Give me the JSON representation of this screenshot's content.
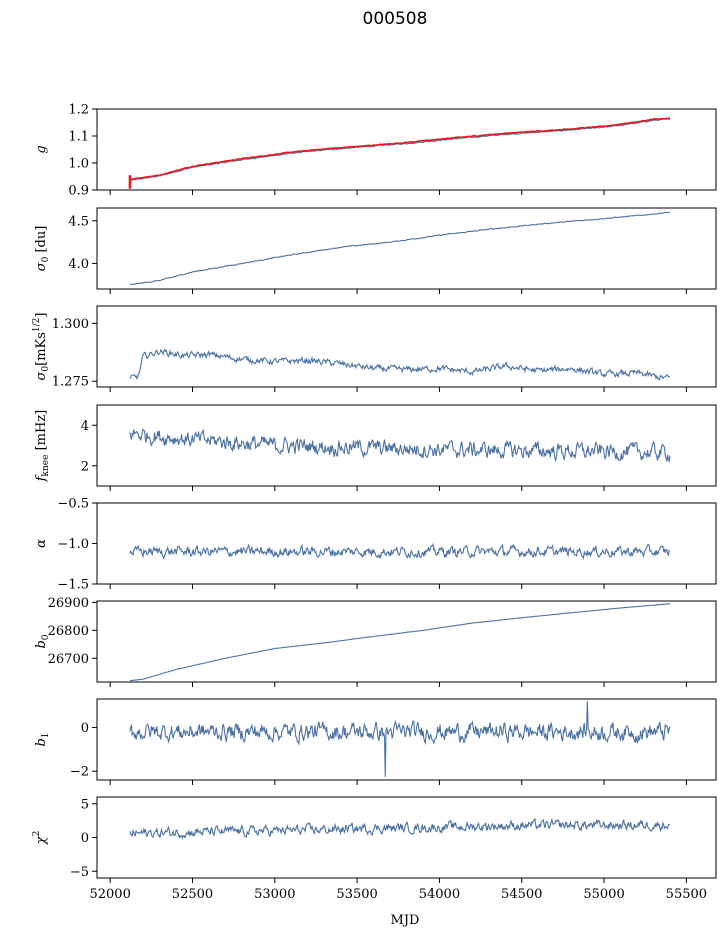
{
  "figure_title": "000508",
  "xlabel": "MJD",
  "colors": {
    "series": "#4c72a4",
    "fit": "#e41a1c",
    "axis": "#000000"
  },
  "chart_data": [
    {
      "id": "g",
      "type": "line",
      "ylabel": "g",
      "ylabel_svg": "<tspan font-style='italic'>g</tspan>",
      "ylim": [
        0.9,
        1.2
      ],
      "yticks": [
        0.9,
        1.0,
        1.1,
        1.2
      ],
      "ytick_labels": [
        "0.9",
        "1.0",
        "1.1",
        "1.2"
      ],
      "series": [
        {
          "name": "g",
          "color": "#4c72a4",
          "x": [
            52120,
            52300,
            52500,
            52800,
            53100,
            53300,
            53500,
            53800,
            54100,
            54400,
            54700,
            55000,
            55200,
            55300,
            55400
          ],
          "y": [
            0.935,
            0.952,
            0.984,
            1.012,
            1.036,
            1.048,
            1.058,
            1.072,
            1.09,
            1.106,
            1.118,
            1.132,
            1.148,
            1.158,
            1.162
          ],
          "noise": 0.002
        },
        {
          "name": "fit",
          "color": "#e41a1c",
          "x": [
            52120,
            52300,
            52500,
            52800,
            53100,
            53300,
            53500,
            53800,
            54100,
            54400,
            54700,
            55000,
            55200,
            55300,
            55400
          ],
          "y": [
            0.94,
            0.955,
            0.988,
            1.016,
            1.04,
            1.052,
            1.061,
            1.076,
            1.094,
            1.11,
            1.122,
            1.136,
            1.152,
            1.162,
            1.165
          ],
          "noise": 0.0015,
          "spike": {
            "x": 52120,
            "ymin": 0.905,
            "ymax": 0.955
          }
        }
      ]
    },
    {
      "id": "sigma0",
      "type": "line",
      "ylabel": "σ0 [du]",
      "ylabel_svg": "<tspan font-style='italic'>σ</tspan><tspan font-size='9' dy='3'>0</tspan><tspan dy='-3'> [du]</tspan>",
      "ylim": [
        3.7,
        4.65
      ],
      "yticks": [
        4.0,
        4.5
      ],
      "ytick_labels": [
        "4.0",
        "4.5"
      ],
      "series": [
        {
          "name": "sigma0",
          "color": "#4c72a4",
          "x": [
            52120,
            52300,
            52500,
            52800,
            53100,
            53400,
            53700,
            54000,
            54300,
            54600,
            54900,
            55200,
            55400
          ],
          "y": [
            3.75,
            3.8,
            3.9,
            4.0,
            4.1,
            4.19,
            4.25,
            4.33,
            4.4,
            4.46,
            4.51,
            4.56,
            4.6
          ],
          "noise": 0.006
        }
      ]
    },
    {
      "id": "sigma0_mks",
      "type": "line",
      "ylabel": "σ0[mKs^1/2]",
      "ylabel_svg": "<tspan font-style='italic'>σ</tspan><tspan font-size='9' dy='3'>0</tspan><tspan dy='-3'>[mKs</tspan><tspan font-size='9' dy='-6'>1/2</tspan><tspan dy='6'>]</tspan>",
      "ylim": [
        1.2725,
        1.3075
      ],
      "yticks": [
        1.275,
        1.3
      ],
      "ytick_labels": [
        "1.275",
        "1.300"
      ],
      "series": [
        {
          "name": "sigma0_mks",
          "color": "#4c72a4",
          "x": [
            52120,
            52170,
            52200,
            52300,
            52450,
            52600,
            52800,
            53000,
            53200,
            53400,
            53600,
            53800,
            54000,
            54200,
            54400,
            54600,
            54800,
            55000,
            55200,
            55350,
            55400
          ],
          "y": [
            1.276,
            1.277,
            1.2855,
            1.288,
            1.286,
            1.2865,
            1.2845,
            1.2835,
            1.284,
            1.2825,
            1.2805,
            1.28,
            1.2805,
            1.279,
            1.2815,
            1.2795,
            1.2805,
            1.278,
            1.2785,
            1.2765,
            1.2765
          ],
          "noise": 0.0015
        }
      ]
    },
    {
      "id": "fknee",
      "type": "line",
      "ylabel": "fknee [mHz]",
      "ylabel_svg": "<tspan font-style='italic'>f</tspan><tspan font-size='9' dy='3'>knee</tspan><tspan dy='-3'> [mHz]</tspan>",
      "ylim": [
        1.0,
        5.0
      ],
      "yticks": [
        2,
        4
      ],
      "ytick_labels": [
        "2",
        "4"
      ],
      "series": [
        {
          "name": "fknee",
          "color": "#4c72a4",
          "x": [
            52120,
            52500,
            53000,
            53500,
            54000,
            54500,
            55000,
            55400
          ],
          "y": [
            3.6,
            3.3,
            3.0,
            2.9,
            2.8,
            2.75,
            2.7,
            2.65
          ],
          "noise": 0.45
        }
      ]
    },
    {
      "id": "alpha",
      "type": "line",
      "ylabel": "α",
      "ylabel_svg": "<tspan font-style='italic'>α</tspan>",
      "ylim": [
        -1.5,
        -0.5
      ],
      "yticks": [
        -1.5,
        -1.0,
        -0.5
      ],
      "ytick_labels": [
        "−1.5",
        "−1.0",
        "−0.5"
      ],
      "series": [
        {
          "name": "alpha",
          "color": "#4c72a4",
          "x": [
            52120,
            55400
          ],
          "y": [
            -1.1,
            -1.1
          ],
          "noise": 0.07
        }
      ]
    },
    {
      "id": "b0",
      "type": "line",
      "ylabel": "b0",
      "ylabel_svg": "<tspan font-style='italic'>b</tspan><tspan font-size='9' dy='3'>0</tspan>",
      "ylim": [
        26615,
        26905
      ],
      "yticks": [
        26700,
        26800,
        26900
      ],
      "ytick_labels": [
        "26700",
        "26800",
        "26900"
      ],
      "series": [
        {
          "name": "b0",
          "color": "#4c72a4",
          "x": [
            52120,
            52200,
            52400,
            52700,
            53000,
            53300,
            53600,
            53900,
            54200,
            54500,
            54800,
            55100,
            55400
          ],
          "y": [
            26620,
            26625,
            26660,
            26700,
            26735,
            26755,
            26778,
            26800,
            26826,
            26845,
            26863,
            26880,
            26895
          ],
          "noise": 0.5
        }
      ]
    },
    {
      "id": "b1",
      "type": "line",
      "ylabel": "b1",
      "ylabel_svg": "<tspan font-style='italic'>b</tspan><tspan font-size='9' dy='3'>1</tspan>",
      "ylim": [
        -2.4,
        1.3
      ],
      "yticks": [
        -2,
        0
      ],
      "ytick_labels": [
        "−2",
        "0"
      ],
      "series": [
        {
          "name": "b1",
          "color": "#4c72a4",
          "x": [
            52120,
            55400
          ],
          "y": [
            -0.2,
            -0.2
          ],
          "noise": 0.45,
          "spikes": [
            {
              "x": 53670,
              "y": -2.25
            },
            {
              "x": 54900,
              "y": 1.2
            }
          ]
        }
      ]
    },
    {
      "id": "chi2",
      "type": "line",
      "ylabel": "χ2",
      "ylabel_svg": "<tspan font-style='italic'>χ</tspan><tspan font-size='9' dy='-6'>2</tspan>",
      "ylim": [
        -6,
        6
      ],
      "yticks": [
        -5,
        0,
        5
      ],
      "ytick_labels": [
        "−5",
        "0",
        "5"
      ],
      "series": [
        {
          "name": "chi2",
          "color": "#4c72a4",
          "x": [
            52120,
            52500,
            53000,
            53500,
            54000,
            54500,
            55000,
            55400
          ],
          "y": [
            0.6,
            0.8,
            1.0,
            1.3,
            1.5,
            1.8,
            1.8,
            1.9
          ],
          "noise": 0.8
        }
      ]
    }
  ],
  "xaxis": {
    "xlim": [
      51920,
      55680
    ],
    "ticks": [
      52000,
      52500,
      53000,
      53500,
      54000,
      54500,
      55000,
      55500
    ],
    "tick_labels": [
      "52000",
      "52500",
      "53000",
      "53500",
      "54000",
      "54500",
      "55000",
      "55500"
    ]
  }
}
